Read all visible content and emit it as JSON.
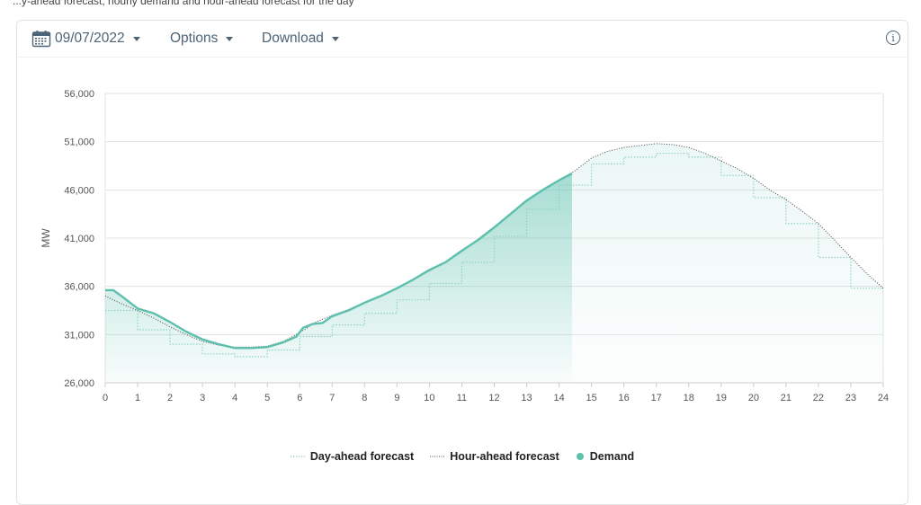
{
  "top_caption": "...y-ahead forecast, hourly demand and hour-ahead forecast for the day",
  "toolbar": {
    "date": "09/07/2022",
    "options_label": "Options",
    "download_label": "Download"
  },
  "colors": {
    "demand": "#5cc0ad",
    "day_ahead": "#8fd2c4",
    "hour_ahead": "#444444",
    "grid": "#e3e3e3",
    "text": "#555555",
    "toolbar_text": "#4d6476"
  },
  "chart_data": {
    "type": "line",
    "ylabel": "MW",
    "xlabel": "",
    "xlim": [
      0,
      24
    ],
    "ylim": [
      26000,
      56000
    ],
    "x_ticks": [
      0,
      1,
      2,
      3,
      4,
      5,
      6,
      7,
      8,
      9,
      10,
      11,
      12,
      13,
      14,
      15,
      16,
      17,
      18,
      19,
      20,
      21,
      22,
      23,
      24
    ],
    "y_ticks": [
      "26,000",
      "31,000",
      "36,000",
      "41,000",
      "46,000",
      "51,000",
      "56,000"
    ],
    "y_tick_values": [
      26000,
      31000,
      36000,
      41000,
      46000,
      51000,
      56000
    ],
    "grid": true,
    "legend": "bottom-center",
    "series": [
      {
        "name": "Day-ahead forecast",
        "style": "dotted-step",
        "x": [
          0,
          1,
          2,
          3,
          4,
          5,
          6,
          7,
          8,
          9,
          10,
          11,
          12,
          13,
          14,
          15,
          16,
          17,
          18,
          19,
          20,
          21,
          22,
          23,
          24
        ],
        "values": [
          33500,
          31500,
          30000,
          29000,
          28700,
          29400,
          30800,
          32000,
          33200,
          34600,
          36300,
          38500,
          41200,
          44000,
          46500,
          48700,
          49400,
          49800,
          49400,
          47500,
          45200,
          42500,
          39000,
          35800,
          35800
        ]
      },
      {
        "name": "Hour-ahead forecast",
        "x": [
          0,
          0.5,
          1,
          1.5,
          2,
          2.5,
          3,
          3.5,
          4,
          4.5,
          5,
          5.5,
          6,
          6.5,
          7,
          7.5,
          8,
          8.5,
          9,
          9.5,
          10,
          10.5,
          11,
          11.5,
          12,
          12.5,
          13,
          13.5,
          14,
          14.5,
          15,
          15.5,
          16,
          16.5,
          17,
          17.5,
          18,
          18.5,
          19,
          19.5,
          20,
          20.5,
          21,
          21.5,
          22,
          22.5,
          23,
          23.5,
          24
        ],
        "values": [
          35000,
          34200,
          33500,
          32700,
          31800,
          31000,
          30300,
          29900,
          29700,
          29700,
          29800,
          30300,
          31200,
          32300,
          33000,
          33600,
          34300,
          35000,
          35800,
          36700,
          37600,
          38500,
          39600,
          40900,
          42200,
          43500,
          44800,
          46000,
          47000,
          48000,
          49300,
          50000,
          50400,
          50600,
          50800,
          50700,
          50400,
          49800,
          49000,
          48200,
          47200,
          46000,
          45000,
          43800,
          42500,
          40800,
          39000,
          37300,
          35800
        ]
      },
      {
        "name": "Demand",
        "style": "solid-area",
        "x": [
          0,
          0.25,
          0.5,
          1,
          1.5,
          2,
          2.5,
          3,
          3.5,
          4,
          4.5,
          5,
          5.5,
          5.9,
          6.1,
          6.4,
          6.7,
          7,
          7.5,
          8,
          8.5,
          9,
          9.5,
          10,
          10.5,
          11,
          11.5,
          12,
          12.5,
          13,
          13.5,
          14,
          14.4
        ],
        "values": [
          35600,
          35600,
          35000,
          33700,
          33200,
          32300,
          31300,
          30500,
          30000,
          29600,
          29600,
          29700,
          30200,
          30800,
          31700,
          32100,
          32200,
          32900,
          33500,
          34300,
          35000,
          35800,
          36700,
          37700,
          38500,
          39700,
          40800,
          42100,
          43500,
          44900,
          46000,
          47000,
          47700
        ]
      }
    ]
  }
}
